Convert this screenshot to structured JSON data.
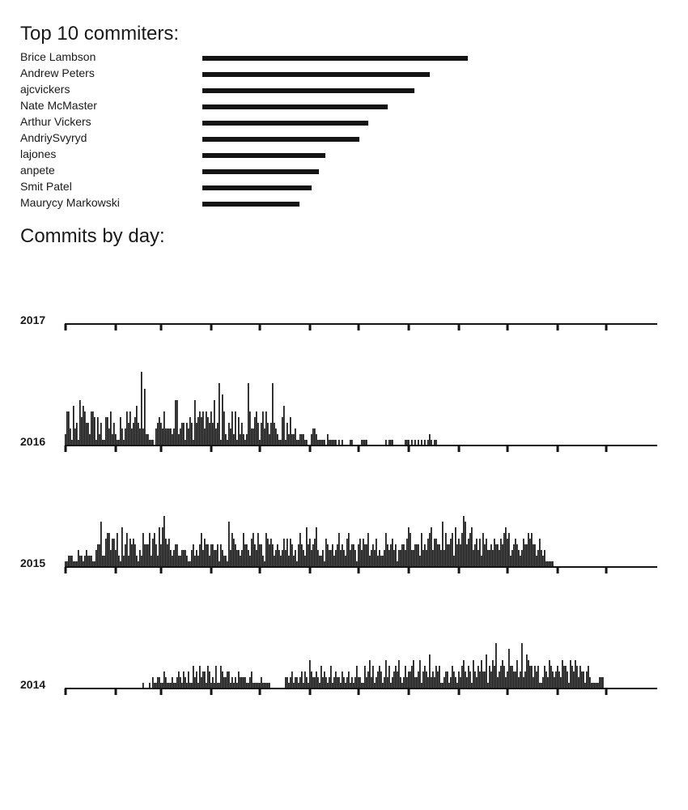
{
  "headings": {
    "top_committers": "Top 10 commiters:",
    "commits_by_day": "Commits by day:"
  },
  "colors": {
    "bar": "#141414",
    "axis": "#141414"
  },
  "chart_data": [
    {
      "type": "bar",
      "title": "Top 10 commiters:",
      "orientation": "horizontal",
      "categories": [
        "Brice Lambson",
        "Andrew Peters",
        "ajcvickers",
        "Nate McMaster",
        "Arthur Vickers",
        "AndriySvyryd",
        "lajones",
        "anpete",
        "Smit Patel",
        "Maurycy Markowski"
      ],
      "values": [
        328,
        281,
        262,
        229,
        205,
        194,
        152,
        144,
        135,
        120
      ]
    },
    {
      "type": "bar",
      "title": "Commits by day:",
      "x_unit": "day of year",
      "tick_marks": "monthly",
      "years": [
        {
          "year": "2017",
          "values": []
        },
        {
          "year": "2016",
          "values": [
            2,
            6,
            6,
            3,
            1,
            7,
            3,
            4,
            1,
            8,
            5,
            7,
            6,
            4,
            4,
            2,
            6,
            6,
            5,
            1,
            5,
            2,
            4,
            1,
            1,
            5,
            5,
            3,
            6,
            2,
            4,
            2,
            1,
            1,
            5,
            3,
            1,
            3,
            6,
            4,
            6,
            3,
            4,
            5,
            7,
            4,
            3,
            13,
            3,
            10,
            2,
            2,
            1,
            1,
            1,
            0,
            3,
            4,
            5,
            4,
            3,
            6,
            3,
            3,
            3,
            3,
            2,
            3,
            8,
            8,
            2,
            3,
            4,
            4,
            1,
            4,
            3,
            5,
            4,
            1,
            8,
            4,
            5,
            6,
            5,
            6,
            3,
            6,
            5,
            4,
            6,
            4,
            8,
            3,
            4,
            11,
            1,
            9,
            6,
            2,
            1,
            4,
            3,
            6,
            2,
            6,
            1,
            5,
            2,
            4,
            2,
            1,
            2,
            11,
            6,
            3,
            3,
            5,
            6,
            4,
            1,
            4,
            6,
            3,
            6,
            4,
            2,
            4,
            11,
            4,
            3,
            2,
            1,
            1,
            5,
            7,
            1,
            4,
            2,
            5,
            2,
            2,
            3,
            1,
            1,
            2,
            2,
            2,
            1,
            1,
            0,
            0,
            2,
            3,
            3,
            2,
            1,
            1,
            1,
            1,
            1,
            0,
            2,
            1,
            1,
            1,
            1,
            1,
            0,
            1,
            0,
            1,
            0,
            0,
            0,
            0,
            1,
            1,
            0,
            0,
            0,
            0,
            0,
            1,
            1,
            1,
            1,
            0,
            0,
            0,
            0,
            0,
            0,
            0,
            0,
            0,
            0,
            0,
            1,
            0,
            1,
            1,
            1,
            0,
            0,
            0,
            0,
            0,
            0,
            0,
            1,
            1,
            1,
            0,
            1,
            0,
            1,
            0,
            1,
            0,
            1,
            0,
            1,
            0,
            1,
            2,
            1,
            0,
            1,
            1,
            0,
            0,
            0,
            0,
            0,
            0,
            0,
            0,
            0,
            0,
            0,
            0,
            0,
            0,
            0,
            0,
            0,
            0,
            0,
            0,
            0,
            0,
            0,
            0,
            0,
            0,
            0,
            0,
            0,
            0,
            0,
            0,
            0,
            0,
            0,
            0,
            0,
            0,
            0,
            0,
            0,
            0,
            0,
            0,
            0,
            0,
            0,
            0,
            0,
            0,
            0,
            0,
            0,
            0,
            0,
            0,
            0,
            0,
            0,
            0,
            0,
            0,
            0,
            0,
            0,
            0,
            0,
            0,
            0,
            0,
            0,
            0,
            0,
            0,
            0,
            0,
            0,
            0,
            0,
            0,
            0,
            0,
            0,
            0,
            0,
            0,
            0,
            0,
            0,
            0,
            0,
            0,
            0,
            0,
            0,
            0,
            0,
            0,
            0,
            0,
            0,
            0,
            0,
            0,
            0,
            0,
            0,
            0,
            0,
            0,
            0,
            0,
            0,
            0,
            0,
            0,
            0,
            0,
            0,
            0,
            0,
            0,
            0,
            0,
            0,
            0,
            0,
            0,
            0,
            0,
            0,
            0,
            0,
            0,
            0,
            0,
            0,
            0,
            0,
            0,
            0,
            0,
            0,
            0,
            0,
            0,
            0,
            0,
            0,
            0,
            0,
            0,
            0,
            0,
            0,
            0,
            0,
            0
          ]
        },
        {
          "year": "2015",
          "values": [
            1,
            1,
            2,
            2,
            2,
            1,
            1,
            1,
            3,
            2,
            2,
            1,
            2,
            3,
            2,
            2,
            2,
            1,
            1,
            3,
            4,
            4,
            8,
            2,
            2,
            5,
            6,
            6,
            3,
            5,
            5,
            3,
            6,
            2,
            1,
            7,
            2,
            4,
            6,
            2,
            5,
            4,
            5,
            4,
            2,
            1,
            3,
            2,
            6,
            4,
            4,
            4,
            6,
            2,
            5,
            6,
            4,
            2,
            7,
            4,
            7,
            9,
            5,
            4,
            5,
            3,
            2,
            3,
            4,
            4,
            2,
            2,
            3,
            3,
            3,
            2,
            1,
            1,
            3,
            4,
            2,
            3,
            2,
            4,
            6,
            3,
            5,
            4,
            4,
            2,
            4,
            4,
            3,
            3,
            4,
            1,
            4,
            3,
            2,
            2,
            1,
            8,
            3,
            6,
            5,
            4,
            3,
            3,
            2,
            3,
            6,
            4,
            4,
            3,
            2,
            5,
            6,
            4,
            3,
            6,
            4,
            4,
            2,
            1,
            6,
            5,
            4,
            5,
            4,
            2,
            3,
            4,
            3,
            2,
            3,
            5,
            3,
            5,
            2,
            5,
            4,
            2,
            3,
            1,
            4,
            6,
            4,
            3,
            2,
            7,
            4,
            5,
            3,
            4,
            5,
            7,
            3,
            2,
            2,
            3,
            1,
            5,
            4,
            3,
            3,
            4,
            2,
            3,
            4,
            6,
            3,
            4,
            3,
            2,
            5,
            6,
            3,
            4,
            4,
            3,
            1,
            4,
            5,
            3,
            5,
            4,
            4,
            6,
            2,
            3,
            4,
            3,
            5,
            2,
            3,
            2,
            2,
            3,
            6,
            4,
            3,
            4,
            5,
            3,
            4,
            1,
            3,
            3,
            4,
            4,
            3,
            5,
            7,
            6,
            3,
            3,
            4,
            4,
            4,
            2,
            6,
            3,
            4,
            3,
            5,
            6,
            7,
            3,
            5,
            5,
            4,
            4,
            3,
            8,
            3,
            6,
            4,
            4,
            5,
            6,
            2,
            7,
            4,
            5,
            4,
            6,
            9,
            8,
            4,
            5,
            6,
            7,
            3,
            4,
            5,
            3,
            5,
            2,
            6,
            4,
            5,
            3,
            3,
            4,
            3,
            5,
            4,
            4,
            3,
            5,
            4,
            6,
            7,
            5,
            6,
            2,
            3,
            4,
            5,
            4,
            3,
            2,
            3,
            5,
            4,
            4,
            6,
            5,
            6,
            4,
            4,
            2,
            3,
            5,
            3,
            2,
            3,
            1,
            1,
            1,
            1,
            1
          ]
        },
        {
          "year": "2014",
          "values": [
            0,
            0,
            0,
            0,
            0,
            0,
            0,
            0,
            0,
            0,
            0,
            0,
            0,
            0,
            0,
            0,
            0,
            0,
            0,
            0,
            0,
            0,
            0,
            0,
            0,
            0,
            0,
            0,
            0,
            0,
            0,
            0,
            0,
            0,
            0,
            0,
            0,
            0,
            0,
            0,
            0,
            0,
            0,
            0,
            0,
            0,
            0,
            0,
            1,
            0,
            0,
            0,
            1,
            0,
            2,
            1,
            1,
            2,
            2,
            1,
            1,
            3,
            2,
            1,
            1,
            1,
            2,
            1,
            1,
            2,
            3,
            2,
            1,
            3,
            2,
            1,
            3,
            1,
            1,
            4,
            2,
            3,
            1,
            4,
            2,
            3,
            3,
            1,
            4,
            3,
            1,
            2,
            1,
            4,
            1,
            1,
            4,
            3,
            2,
            2,
            3,
            3,
            1,
            2,
            1,
            2,
            1,
            3,
            2,
            2,
            2,
            2,
            1,
            1,
            2,
            3,
            1,
            1,
            1,
            1,
            1,
            2,
            1,
            1,
            1,
            1,
            1,
            0,
            0,
            0,
            0,
            0,
            0,
            0,
            0,
            0,
            2,
            2,
            1,
            2,
            3,
            1,
            2,
            2,
            1,
            2,
            3,
            1,
            3,
            2,
            1,
            5,
            3,
            2,
            2,
            3,
            2,
            1,
            4,
            2,
            3,
            2,
            1,
            2,
            4,
            1,
            2,
            3,
            2,
            2,
            1,
            3,
            2,
            1,
            2,
            3,
            1,
            2,
            1,
            2,
            4,
            2,
            2,
            1,
            1,
            4,
            2,
            3,
            5,
            2,
            4,
            1,
            2,
            3,
            4,
            3,
            1,
            2,
            5,
            2,
            4,
            1,
            2,
            3,
            4,
            3,
            5,
            2,
            1,
            2,
            4,
            2,
            3,
            3,
            4,
            5,
            2,
            2,
            3,
            5,
            1,
            3,
            4,
            3,
            2,
            6,
            2,
            3,
            2,
            4,
            3,
            4,
            1,
            1,
            2,
            3,
            3,
            1,
            2,
            4,
            3,
            2,
            1,
            3,
            2,
            4,
            5,
            3,
            2,
            4,
            3,
            1,
            5,
            3,
            2,
            4,
            3,
            5,
            3,
            3,
            6,
            1,
            4,
            3,
            5,
            4,
            8,
            2,
            3,
            4,
            5,
            4,
            2,
            3,
            7,
            4,
            4,
            3,
            3,
            5,
            2,
            3,
            8,
            2,
            3,
            6,
            5,
            4,
            4,
            2,
            4,
            3,
            4,
            1,
            1,
            2,
            4,
            3,
            2,
            5,
            4,
            3,
            2,
            3,
            4,
            3,
            2,
            5,
            4,
            4,
            3,
            1,
            5,
            4,
            3,
            5,
            4,
            2,
            4,
            3,
            3,
            1,
            3,
            4,
            2,
            1,
            1,
            1,
            1,
            1,
            2,
            2,
            2
          ]
        }
      ]
    }
  ]
}
